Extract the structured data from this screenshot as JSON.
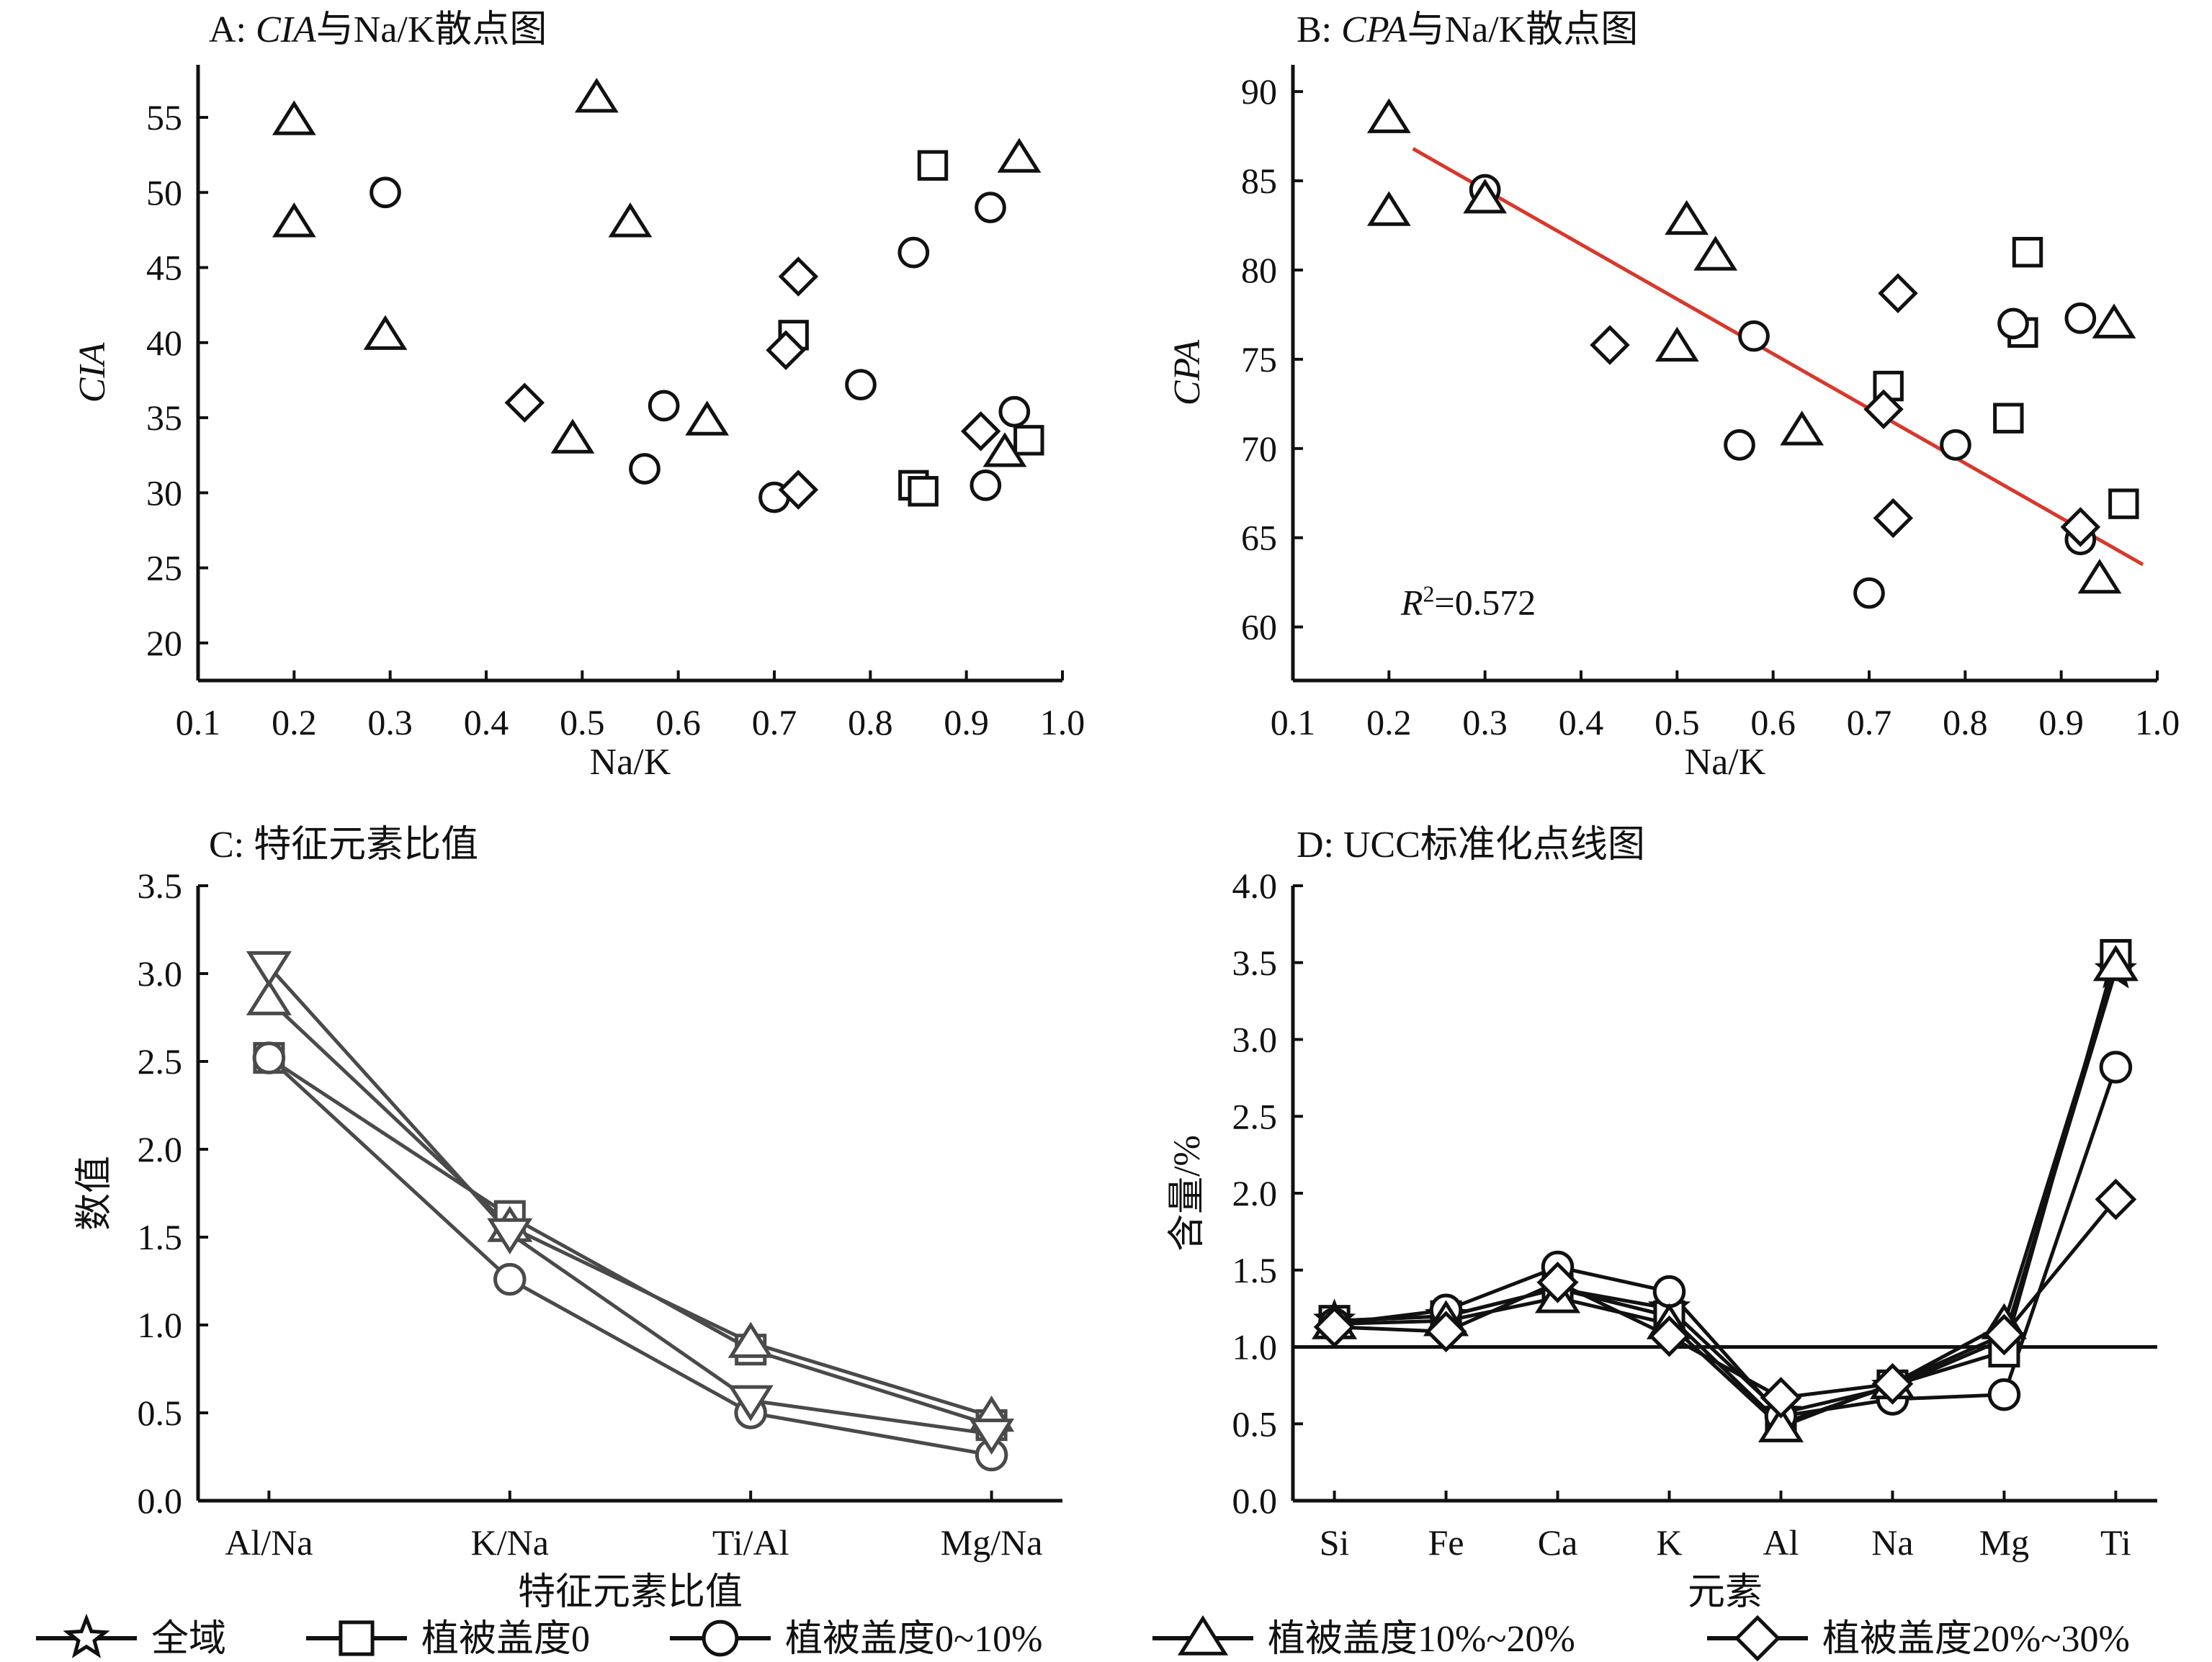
{
  "legend": [
    {
      "marker": "star",
      "label": "全域"
    },
    {
      "marker": "square",
      "label": "植被盖度0"
    },
    {
      "marker": "circle",
      "label": "植被盖度0~10%"
    },
    {
      "marker": "triangle",
      "label": "植被盖度10%~20%"
    },
    {
      "marker": "diamond",
      "label": "植被盖度20%~30%"
    }
  ],
  "chart_data": [
    {
      "id": "A",
      "type": "scatter",
      "title_prefix": "A: ",
      "title_italic": "CIA",
      "title_suffix": "与Na/K散点图",
      "xlabel": "Na/K",
      "ylabel": "CIA",
      "xlim": [
        0.1,
        1.0
      ],
      "ylim": [
        17.5,
        58.5
      ],
      "xticks": [
        "0.1",
        "0.2",
        "0.3",
        "0.4",
        "0.5",
        "0.6",
        "0.7",
        "0.8",
        "0.9",
        "1.0"
      ],
      "yticks": [
        "20",
        "25",
        "30",
        "35",
        "40",
        "45",
        "50",
        "55"
      ],
      "series": [
        {
          "marker": "square",
          "points": [
            [
              0.865,
              51.8
            ],
            [
              0.72,
              40.5
            ],
            [
              0.845,
              30.5
            ],
            [
              0.855,
              30.1
            ],
            [
              0.965,
              33.5
            ]
          ]
        },
        {
          "marker": "circle",
          "points": [
            [
              0.295,
              50.0
            ],
            [
              0.585,
              35.8
            ],
            [
              0.565,
              31.6
            ],
            [
              0.7,
              29.7
            ],
            [
              0.79,
              37.2
            ],
            [
              0.845,
              46.0
            ],
            [
              0.925,
              49.0
            ],
            [
              0.92,
              30.5
            ],
            [
              0.95,
              35.4
            ]
          ]
        },
        {
          "marker": "triangle",
          "points": [
            [
              0.2,
              54.8
            ],
            [
              0.2,
              48.0
            ],
            [
              0.295,
              40.5
            ],
            [
              0.515,
              56.3
            ],
            [
              0.55,
              48.0
            ],
            [
              0.49,
              33.6
            ],
            [
              0.63,
              34.8
            ],
            [
              0.955,
              52.3
            ],
            [
              0.94,
              32.7
            ]
          ]
        },
        {
          "marker": "diamond",
          "points": [
            [
              0.44,
              36.0
            ],
            [
              0.725,
              44.4
            ],
            [
              0.712,
              39.5
            ],
            [
              0.725,
              30.2
            ],
            [
              0.915,
              34.1
            ]
          ]
        }
      ]
    },
    {
      "id": "B",
      "type": "scatter",
      "title_prefix": "B: ",
      "title_italic": "CPA",
      "title_suffix": "与Na/K散点图",
      "xlabel": "Na/K",
      "ylabel": "CPA",
      "xlim": [
        0.1,
        1.0
      ],
      "ylim": [
        57.0,
        91.5
      ],
      "xticks": [
        "0.1",
        "0.2",
        "0.3",
        "0.4",
        "0.5",
        "0.6",
        "0.7",
        "0.8",
        "0.9",
        "1.0"
      ],
      "yticks": [
        "60",
        "65",
        "70",
        "75",
        "80",
        "85",
        "90"
      ],
      "trendline": {
        "x": [
          0.225,
          0.985
        ],
        "y": [
          86.8,
          63.5
        ],
        "color": "#d7382b"
      },
      "r2_label": "R²=0.572",
      "series": [
        {
          "marker": "square",
          "points": [
            [
              0.865,
              81.0
            ],
            [
              0.86,
              76.5
            ],
            [
              0.72,
              73.5
            ],
            [
              0.845,
              71.7
            ],
            [
              0.965,
              66.9
            ]
          ]
        },
        {
          "marker": "circle",
          "points": [
            [
              0.3,
              84.5
            ],
            [
              0.58,
              76.3
            ],
            [
              0.565,
              70.2
            ],
            [
              0.79,
              70.2
            ],
            [
              0.7,
              61.9
            ],
            [
              0.85,
              77.0
            ],
            [
              0.92,
              77.3
            ],
            [
              0.92,
              64.9
            ]
          ]
        },
        {
          "marker": "triangle",
          "points": [
            [
              0.2,
              88.5
            ],
            [
              0.2,
              83.3
            ],
            [
              0.3,
              84.0
            ],
            [
              0.51,
              82.8
            ],
            [
              0.54,
              80.8
            ],
            [
              0.5,
              75.7
            ],
            [
              0.63,
              71.0
            ],
            [
              0.955,
              77.0
            ],
            [
              0.94,
              62.7
            ]
          ]
        },
        {
          "marker": "diamond",
          "points": [
            [
              0.43,
              75.8
            ],
            [
              0.73,
              78.7
            ],
            [
              0.715,
              72.2
            ],
            [
              0.725,
              66.1
            ],
            [
              0.92,
              65.6
            ]
          ]
        }
      ]
    },
    {
      "id": "C",
      "type": "line",
      "title": "C: 特征元素比值",
      "xlabel": "特征元素比值",
      "ylabel": "数值",
      "categories": [
        "Al/Na",
        "K/Na",
        "Ti/Al",
        "Mg/Na"
      ],
      "ylim": [
        0.0,
        3.5
      ],
      "yticks": [
        "0.0",
        "0.5",
        "1.0",
        "1.5",
        "2.0",
        "2.5",
        "3.0",
        "3.5"
      ],
      "line_color": "#4a4a4a",
      "series": [
        {
          "marker": "square",
          "values": [
            2.52,
            1.62,
            0.86,
            0.43
          ]
        },
        {
          "marker": "circle",
          "values": [
            2.52,
            1.26,
            0.5,
            0.26
          ]
        },
        {
          "marker": "triangle",
          "values": [
            2.85,
            1.56,
            0.9,
            0.48
          ]
        },
        {
          "marker": "invtriangle",
          "values": [
            3.04,
            1.52,
            0.57,
            0.38
          ]
        }
      ]
    },
    {
      "id": "D",
      "type": "line",
      "title": "D: UCC标准化点线图",
      "xlabel": "元素",
      "ylabel": "含量/%",
      "categories": [
        "Si",
        "Fe",
        "Ca",
        "K",
        "Al",
        "Na",
        "Mg",
        "Ti"
      ],
      "ylim": [
        0.0,
        4.0
      ],
      "yticks": [
        "0.0",
        "0.5",
        "1.0",
        "1.5",
        "2.0",
        "2.5",
        "3.0",
        "3.5",
        "4.0"
      ],
      "reference_line": 1.0,
      "line_color": "#111111",
      "series": [
        {
          "marker": "star",
          "values": [
            1.17,
            1.2,
            1.38,
            1.25,
            0.57,
            0.74,
            1.05,
            3.45
          ]
        },
        {
          "marker": "square",
          "values": [
            1.17,
            1.2,
            1.38,
            1.2,
            0.5,
            0.75,
            0.97,
            3.55
          ]
        },
        {
          "marker": "circle",
          "values": [
            1.15,
            1.24,
            1.52,
            1.36,
            0.55,
            0.66,
            0.69,
            2.82
          ]
        },
        {
          "marker": "triangle",
          "values": [
            1.15,
            1.17,
            1.32,
            1.15,
            0.48,
            0.76,
            1.15,
            3.48
          ]
        },
        {
          "marker": "diamond",
          "values": [
            1.13,
            1.1,
            1.42,
            1.07,
            0.67,
            0.76,
            1.08,
            1.96
          ]
        }
      ]
    }
  ]
}
